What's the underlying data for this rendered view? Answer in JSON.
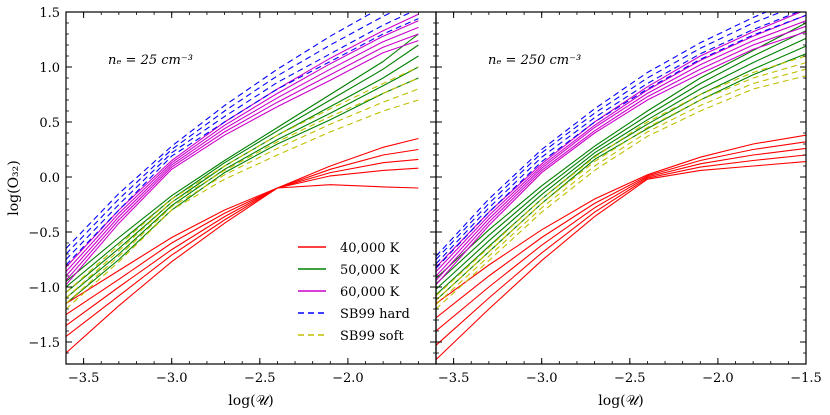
{
  "chart_data": {
    "type": "line",
    "ylabel": "log(O₃₂)",
    "xlabel": "log(𝒰)",
    "xlim": [
      -3.6,
      -1.5
    ],
    "ylim": [
      -1.7,
      1.5
    ],
    "xticks": [
      -3.5,
      -3.0,
      -2.5,
      -2.0,
      -1.5
    ],
    "xtick_labels_left": [
      "−3.5",
      "−3.0",
      "−2.5",
      "−2.0"
    ],
    "xtick_labels_right": [
      "−3.5",
      "−3.0",
      "−2.5",
      "−2.0",
      "−1.5"
    ],
    "yticks": [
      -1.5,
      -1.0,
      -0.5,
      0.0,
      0.5,
      1.0,
      1.5
    ],
    "ytick_labels": [
      "−1.5",
      "−1.0",
      "−0.5",
      "0.0",
      "0.5",
      "1.0",
      "1.5"
    ],
    "legend": {
      "placement": "lower-right of left panel",
      "entries": [
        {
          "label": "40,000 K",
          "color": "#ff0000",
          "dash": "solid"
        },
        {
          "label": "50,000 K",
          "color": "#008000",
          "dash": "solid"
        },
        {
          "label": "60,000 K",
          "color": "#cc00cc",
          "dash": "solid"
        },
        {
          "label": "SB99 hard",
          "color": "#0000ff",
          "dash": "dashed"
        },
        {
          "label": "SB99 soft",
          "color": "#bfbf00",
          "dash": "dashed"
        }
      ]
    },
    "panels": [
      {
        "id": "left",
        "annotation": "nₑ = 25 cm⁻³",
        "series": [
          {
            "name": "40,000 K",
            "x": [
              -3.6,
              -3.3,
              -3.0,
              -2.7,
              -2.4,
              -2.1,
              -1.8,
              -1.6
            ],
            "lines": [
              [
                -1.15,
                -0.85,
                -0.55,
                -0.3,
                -0.1,
                0.1,
                0.27,
                0.35
              ],
              [
                -1.25,
                -0.93,
                -0.6,
                -0.33,
                -0.1,
                0.07,
                0.2,
                0.25
              ],
              [
                -1.35,
                -1.0,
                -0.66,
                -0.36,
                -0.1,
                0.04,
                0.13,
                0.16
              ],
              [
                -1.45,
                -1.08,
                -0.71,
                -0.39,
                -0.1,
                0.01,
                0.06,
                0.08
              ],
              [
                -1.6,
                -1.17,
                -0.77,
                -0.42,
                -0.1,
                -0.07,
                -0.09,
                -0.1
              ]
            ]
          },
          {
            "name": "50,000 K",
            "x": [
              -3.6,
              -3.3,
              -3.0,
              -2.7,
              -2.4,
              -2.1,
              -1.8,
              -1.6
            ],
            "lines": [
              [
                -0.95,
                -0.55,
                -0.17,
                0.15,
                0.45,
                0.75,
                1.05,
                1.3
              ],
              [
                -1.0,
                -0.6,
                -0.2,
                0.13,
                0.42,
                0.7,
                0.98,
                1.2
              ],
              [
                -1.05,
                -0.65,
                -0.23,
                0.1,
                0.38,
                0.64,
                0.9,
                1.1
              ],
              [
                -1.1,
                -0.7,
                -0.26,
                0.07,
                0.34,
                0.58,
                0.83,
                1.0
              ],
              [
                -1.15,
                -0.75,
                -0.3,
                0.04,
                0.3,
                0.52,
                0.76,
                0.9
              ]
            ]
          },
          {
            "name": "60,000 K",
            "x": [
              -3.6,
              -3.3,
              -3.0,
              -2.7,
              -2.4,
              -2.1,
              -1.8,
              -1.6
            ],
            "lines": [
              [
                -0.82,
                -0.3,
                0.15,
                0.5,
                0.8,
                1.08,
                1.33,
                1.48
              ],
              [
                -0.86,
                -0.33,
                0.13,
                0.47,
                0.76,
                1.03,
                1.28,
                1.42
              ],
              [
                -0.9,
                -0.36,
                0.11,
                0.44,
                0.72,
                0.98,
                1.23,
                1.36
              ],
              [
                -0.94,
                -0.39,
                0.09,
                0.41,
                0.68,
                0.93,
                1.18,
                1.3
              ],
              [
                -0.98,
                -0.42,
                0.07,
                0.38,
                0.64,
                0.88,
                1.13,
                1.24
              ]
            ]
          },
          {
            "name": "SB99 hard",
            "x": [
              -3.6,
              -3.3,
              -3.0,
              -2.7,
              -2.4,
              -2.1,
              -1.8,
              -1.6
            ],
            "lines": [
              [
                -0.65,
                -0.15,
                0.28,
                0.65,
                0.98,
                1.28,
                1.55,
                1.72
              ],
              [
                -0.7,
                -0.2,
                0.25,
                0.6,
                0.92,
                1.2,
                1.46,
                1.62
              ],
              [
                -0.75,
                -0.25,
                0.22,
                0.55,
                0.86,
                1.12,
                1.38,
                1.53
              ],
              [
                -0.8,
                -0.3,
                0.19,
                0.5,
                0.8,
                1.05,
                1.3,
                1.44
              ]
            ]
          },
          {
            "name": "SB99 soft",
            "x": [
              -3.6,
              -3.3,
              -3.0,
              -2.7,
              -2.4,
              -2.1,
              -1.8,
              -1.6
            ],
            "lines": [
              [
                -1.05,
                -0.62,
                -0.2,
                0.1,
                0.38,
                0.62,
                0.85,
                1.0
              ],
              [
                -1.1,
                -0.67,
                -0.23,
                0.06,
                0.32,
                0.55,
                0.76,
                0.9
              ],
              [
                -1.15,
                -0.72,
                -0.27,
                0.02,
                0.26,
                0.48,
                0.68,
                0.8
              ],
              [
                -1.2,
                -0.77,
                -0.3,
                -0.02,
                0.2,
                0.41,
                0.6,
                0.7
              ]
            ]
          }
        ]
      },
      {
        "id": "right",
        "annotation": "nₑ = 250 cm⁻³",
        "series": [
          {
            "name": "40,000 K",
            "x": [
              -3.6,
              -3.3,
              -3.0,
              -2.7,
              -2.4,
              -2.1,
              -1.8,
              -1.5
            ],
            "lines": [
              [
                -1.15,
                -0.8,
                -0.48,
                -0.2,
                0.02,
                0.18,
                0.3,
                0.38
              ],
              [
                -1.28,
                -0.9,
                -0.55,
                -0.24,
                0.01,
                0.15,
                0.25,
                0.32
              ],
              [
                -1.4,
                -1.0,
                -0.62,
                -0.28,
                0.0,
                0.12,
                0.2,
                0.26
              ],
              [
                -1.53,
                -1.1,
                -0.69,
                -0.32,
                -0.01,
                0.09,
                0.15,
                0.2
              ],
              [
                -1.66,
                -1.2,
                -0.76,
                -0.36,
                -0.02,
                0.06,
                0.1,
                0.14
              ]
            ]
          },
          {
            "name": "50,000 K",
            "x": [
              -3.6,
              -3.3,
              -3.0,
              -2.7,
              -2.4,
              -2.1,
              -1.8,
              -1.5
            ],
            "lines": [
              [
                -0.92,
                -0.48,
                -0.08,
                0.28,
                0.6,
                0.9,
                1.15,
                1.4
              ],
              [
                -0.97,
                -0.53,
                -0.12,
                0.25,
                0.56,
                0.85,
                1.1,
                1.33
              ],
              [
                -1.02,
                -0.58,
                -0.16,
                0.22,
                0.52,
                0.8,
                1.04,
                1.26
              ],
              [
                -1.07,
                -0.63,
                -0.2,
                0.19,
                0.48,
                0.75,
                0.98,
                1.19
              ],
              [
                -1.12,
                -0.68,
                -0.24,
                0.16,
                0.44,
                0.7,
                0.93,
                1.12
              ]
            ]
          },
          {
            "name": "60,000 K",
            "x": [
              -3.6,
              -3.3,
              -3.0,
              -2.7,
              -2.4,
              -2.1,
              -1.8,
              -1.5
            ],
            "lines": [
              [
                -0.82,
                -0.32,
                0.12,
                0.5,
                0.82,
                1.1,
                1.32,
                1.52
              ],
              [
                -0.86,
                -0.35,
                0.1,
                0.47,
                0.79,
                1.06,
                1.28,
                1.47
              ],
              [
                -0.9,
                -0.38,
                0.08,
                0.45,
                0.76,
                1.02,
                1.24,
                1.42
              ],
              [
                -0.94,
                -0.41,
                0.06,
                0.42,
                0.73,
                0.98,
                1.2,
                1.37
              ],
              [
                -0.98,
                -0.44,
                0.04,
                0.4,
                0.7,
                0.94,
                1.16,
                1.32
              ]
            ]
          },
          {
            "name": "SB99 hard",
            "x": [
              -3.6,
              -3.3,
              -3.0,
              -2.7,
              -2.4,
              -2.1,
              -1.8,
              -1.5
            ],
            "lines": [
              [
                -0.72,
                -0.2,
                0.25,
                0.62,
                0.95,
                1.22,
                1.45,
                1.65
              ],
              [
                -0.75,
                -0.24,
                0.22,
                0.58,
                0.9,
                1.17,
                1.4,
                1.59
              ],
              [
                -0.79,
                -0.28,
                0.18,
                0.54,
                0.85,
                1.12,
                1.34,
                1.53
              ],
              [
                -0.83,
                -0.32,
                0.14,
                0.5,
                0.8,
                1.07,
                1.29,
                1.47
              ]
            ]
          },
          {
            "name": "SB99 soft",
            "x": [
              -3.6,
              -3.3,
              -3.0,
              -2.7,
              -2.4,
              -2.1,
              -1.8,
              -1.5
            ],
            "lines": [
              [
                -1.08,
                -0.64,
                -0.2,
                0.18,
                0.5,
                0.75,
                0.95,
                1.1
              ],
              [
                -1.12,
                -0.68,
                -0.24,
                0.14,
                0.45,
                0.7,
                0.9,
                1.04
              ],
              [
                -1.16,
                -0.72,
                -0.28,
                0.1,
                0.41,
                0.65,
                0.85,
                0.98
              ],
              [
                -1.2,
                -0.76,
                -0.32,
                0.06,
                0.37,
                0.6,
                0.8,
                0.92
              ]
            ]
          }
        ]
      }
    ]
  }
}
